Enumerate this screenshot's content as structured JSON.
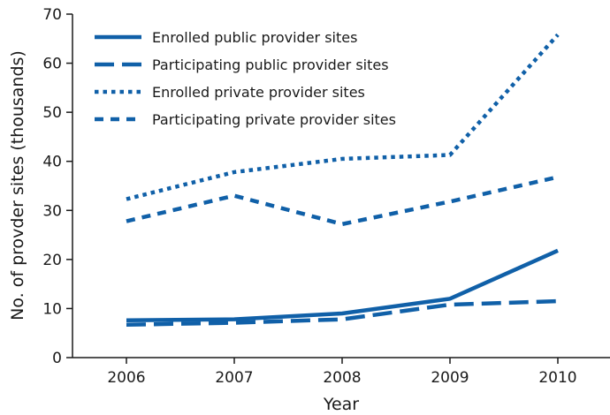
{
  "chart_data": {
    "type": "line",
    "title": "",
    "xlabel": "Year",
    "ylabel": "No. of provder sites (thousands)",
    "x": [
      "2006",
      "2007",
      "2008",
      "2009",
      "2010"
    ],
    "ylim": [
      0,
      70
    ],
    "yticks": [
      "0",
      "10",
      "20",
      "30",
      "40",
      "50",
      "60",
      "70"
    ],
    "grid": false,
    "legend_position": "top-left",
    "line_color": "#1060a8",
    "series": [
      {
        "name": "Enrolled public provider sites",
        "style": "solid",
        "values": [
          7.6,
          7.8,
          9.0,
          12.0,
          21.8
        ]
      },
      {
        "name": "Participating public provider sites",
        "style": "long-dash",
        "values": [
          6.7,
          7.1,
          7.8,
          10.8,
          11.5
        ]
      },
      {
        "name": "Enrolled private provider sites",
        "style": "dotted",
        "values": [
          32.3,
          37.8,
          40.5,
          41.3,
          65.8
        ]
      },
      {
        "name": "Participating private provider sites",
        "style": "short-dash",
        "values": [
          27.8,
          33.0,
          27.2,
          31.8,
          36.8
        ]
      }
    ]
  }
}
